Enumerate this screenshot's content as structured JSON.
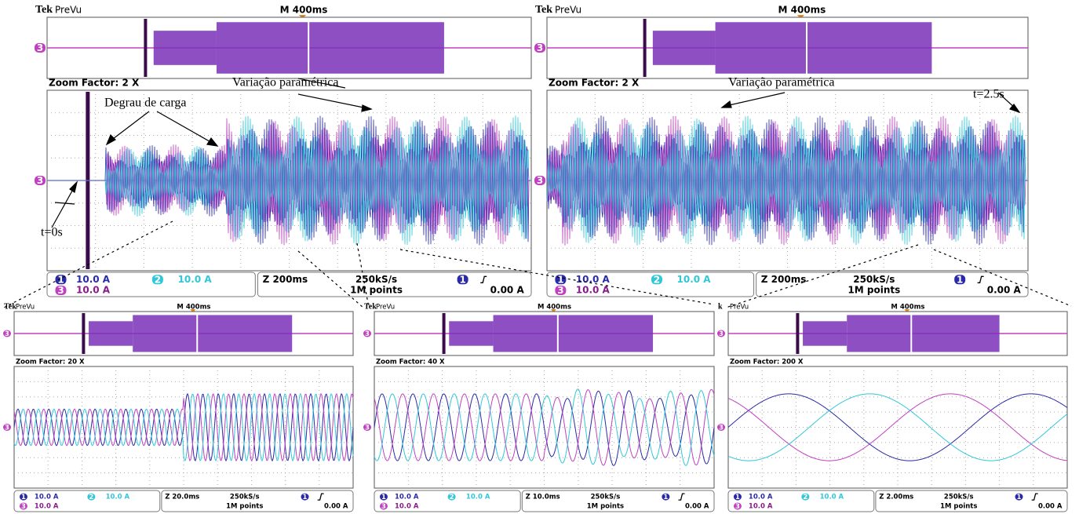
{
  "scopes": [
    {
      "brand": "Tek",
      "preview": "PreVu",
      "m_label": "M 400ms",
      "zoom": "Zoom Factor: 2 X",
      "marker": "3",
      "ch1": "1",
      "ch1_scale": "10.0 A",
      "ch2": "2",
      "ch2_scale": "10.0 A",
      "ch3": "3",
      "ch3_scale": "10.0 A",
      "z_label": "Z 200ms",
      "rate": "250kS/s",
      "points": "1M points",
      "trig_ch": "1",
      "trigger": "0.00 A"
    },
    {
      "brand": "Tek",
      "preview": "PreVu",
      "m_label": "M 400ms",
      "zoom": "Zoom Factor: 2 X",
      "marker": "3",
      "ch1": "1",
      "ch1_scale": "10.0 A",
      "ch2": "2",
      "ch2_scale": "10.0 A",
      "ch3": "3",
      "ch3_scale": "10.0 A",
      "z_label": "Z 200ms",
      "rate": "250kS/s",
      "points": "1M points",
      "trig_ch": "1",
      "trigger": "0.00 A"
    },
    {
      "brand": "Tek",
      "preview": "PreVu",
      "m_label": "M 400ms",
      "zoom": "Zoom Factor: 20 X",
      "marker": "3",
      "ch1": "1",
      "ch1_scale": "10.0 A",
      "ch2": "2",
      "ch2_scale": "10.0 A",
      "ch3": "3",
      "ch3_scale": "10.0 A",
      "z_label": "Z 20.0ms",
      "rate": "250kS/s",
      "points": "1M points",
      "trig_ch": "1",
      "trigger": "0.00 A"
    },
    {
      "brand": "Tek",
      "preview": "PreVu",
      "m_label": "M 400ms",
      "zoom": "Zoom Factor: 40 X",
      "marker": "3",
      "ch1": "1",
      "ch1_scale": "10.0 A",
      "ch2": "2",
      "ch2_scale": "10.0 A",
      "ch3": "3",
      "ch3_scale": "10.0 A",
      "z_label": "Z 10.0ms",
      "rate": "250kS/s",
      "points": "1M points",
      "trig_ch": "1",
      "trigger": "0.00 A"
    },
    {
      "brand": "k",
      "preview": "PreVu",
      "m_label": "M 400ms",
      "zoom": "Zoom Factor: 200 X",
      "marker": "3",
      "ch1": "1",
      "ch1_scale": "10.0 A",
      "ch2": "2",
      "ch2_scale": "10.0 A",
      "ch3": "3",
      "ch3_scale": "10.0 A",
      "z_label": "Z 2.00ms",
      "rate": "250kS/s",
      "points": "1M points",
      "trig_ch": "1",
      "trigger": "0.00 A"
    }
  ],
  "annotations": {
    "load_step": "Degrau de carga",
    "param_left": "Variação paramétrica",
    "param_right": "Variação paramétrica",
    "t_start": "t=0s",
    "t_end": "t=2.5s"
  }
}
